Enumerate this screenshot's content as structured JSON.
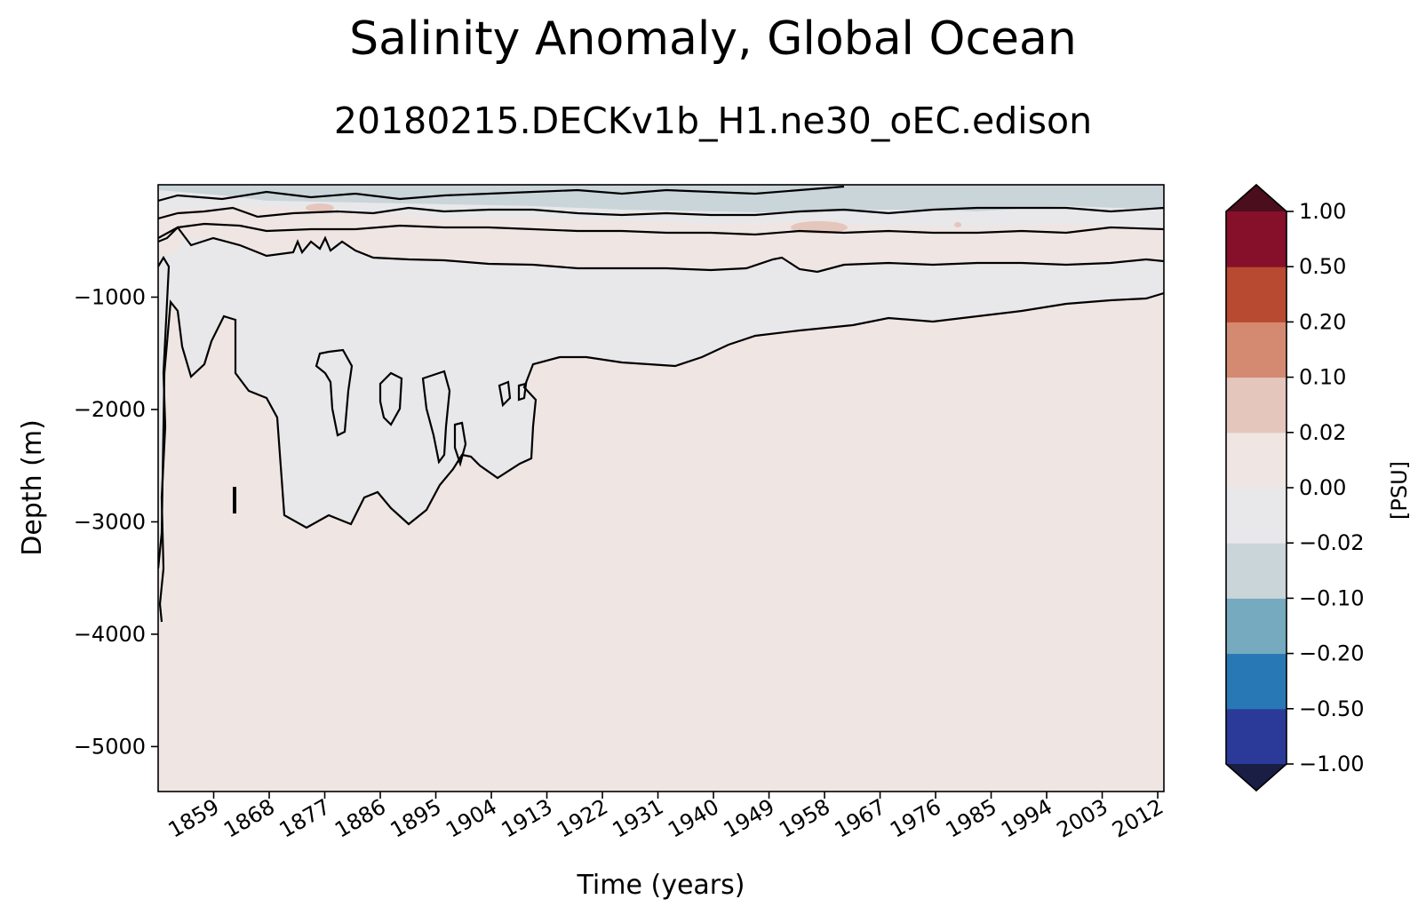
{
  "title": "Salinity Anomaly, Global Ocean",
  "subtitle": "20180215.DECKv1b_H1.ne30_oEC.edison",
  "chart_data": {
    "type": "heatmap",
    "xlabel": "Time (years)",
    "ylabel": "Depth (m)",
    "xlim": [
      1850,
      2013
    ],
    "ylim": [
      -5400,
      0
    ],
    "xticks": [
      "1859",
      "1868",
      "1877",
      "1886",
      "1895",
      "1904",
      "1913",
      "1922",
      "1931",
      "1940",
      "1949",
      "1958",
      "1967",
      "1976",
      "1985",
      "1994",
      "2003",
      "2012"
    ],
    "yticks": [
      {
        "value": -1000,
        "label": "−1000"
      },
      {
        "value": -2000,
        "label": "−2000"
      },
      {
        "value": -3000,
        "label": "−3000"
      },
      {
        "value": -4000,
        "label": "−4000"
      },
      {
        "value": -5000,
        "label": "−5000"
      }
    ],
    "colorbar": {
      "label": "[PSU]",
      "extend": "both",
      "levels": [
        "−1.00",
        "−0.50",
        "−0.20",
        "−0.10",
        "−0.02",
        "0.00",
        "0.02",
        "0.10",
        "0.20",
        "0.50",
        "1.00"
      ],
      "colors": [
        "#2b3a99",
        "#2878b5",
        "#76aabe",
        "#cad5da",
        "#e8e8ea",
        "#efe5e3",
        "#e5c6bd",
        "#d38a70",
        "#b84a31",
        "#860f29"
      ],
      "under_color": "#1a1e45",
      "over_color": "#4a0e1c"
    },
    "contour_levels": [
      -0.02,
      0.0,
      0.02
    ],
    "field_summary": [
      {
        "region": "surface layer 0 to -300 m",
        "range": "−0.10 to 0.02"
      },
      {
        "region": "intermediate layer -300 to -800 m",
        "range": "0.00 to 0.02"
      },
      {
        "region": "mid-depth freshening band, down to -3000 m before 1913, thinning to -1000 m by 2012",
        "range": "−0.02 to 0.00"
      },
      {
        "region": "deep ocean below band",
        "range": "0.00 to 0.02"
      }
    ]
  }
}
